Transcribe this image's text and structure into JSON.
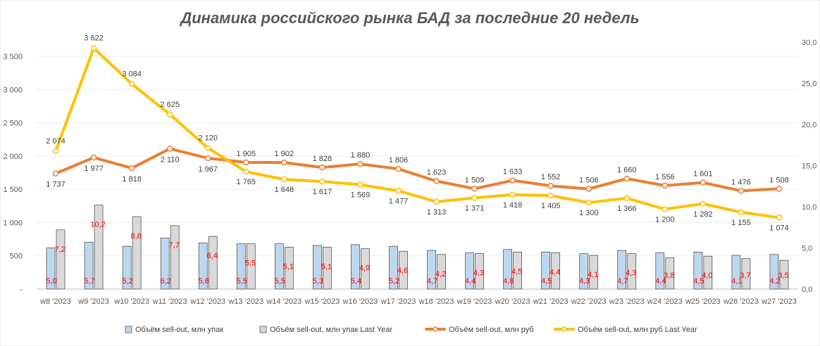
{
  "chart_data": {
    "type": "bar",
    "title": "Динамика российского рынка БАД за последние 20 недель",
    "categories": [
      "w8 '2023",
      "w9 '2023",
      "w10 '2023",
      "w11 '2023",
      "w12 '2023",
      "w13 '2023",
      "w14 '2023",
      "w15 '2023",
      "w16 '2023",
      "w17 '2023",
      "w18 '2023",
      "w19 '2023",
      "w20 '2023",
      "w21 '2023",
      "w22 '2023",
      "w23 '2023",
      "w24 '2023",
      "w25 '2023",
      "w26 '2023",
      "w27 '2023"
    ],
    "y_left": {
      "ticks": [
        "-",
        "500",
        "1 000",
        "1 500",
        "2 000",
        "2 500",
        "3 000",
        "3 500"
      ],
      "range": [
        0,
        3500
      ]
    },
    "y_right": {
      "ticks": [
        "0,0",
        "5,0",
        "10,0",
        "15,0",
        "20,0",
        "25,0",
        "30,0"
      ],
      "range": [
        0,
        30
      ]
    },
    "series": [
      {
        "name": "Объём sell-out, млн упак",
        "type": "bar",
        "axis": "right",
        "color": "#bdd7ee",
        "values": [
          5.0,
          5.7,
          5.2,
          6.2,
          5.6,
          5.5,
          5.5,
          5.3,
          5.4,
          5.2,
          4.7,
          4.4,
          4.8,
          4.5,
          4.3,
          4.7,
          4.4,
          4.5,
          4.1,
          4.2
        ],
        "labels": [
          "5,0",
          "5,7",
          "5,2",
          "6,2",
          "5,6",
          "5,5",
          "5,5",
          "5,3",
          "5,4",
          "5,2",
          "4,7",
          "4,4",
          "4,8",
          "4,5",
          "4,3",
          "4,7",
          "4,4",
          "4,5",
          "4,1",
          "4,2"
        ]
      },
      {
        "name": "Объём sell-out, млн упак Last Year",
        "type": "bar",
        "axis": "right",
        "color": "#d9d9d9",
        "values": [
          7.2,
          10.2,
          8.8,
          7.7,
          6.4,
          5.5,
          5.1,
          5.1,
          4.9,
          4.6,
          4.2,
          4.3,
          4.5,
          4.4,
          4.1,
          4.3,
          3.8,
          4.0,
          3.7,
          3.5
        ],
        "labels": [
          "7,2",
          "10,2",
          "8,8",
          "7,7",
          "6,4",
          "5,5",
          "5,1",
          "5,1",
          "4,9",
          "4,6",
          "4,2",
          "4,3",
          "4,5",
          "4,4",
          "4,1",
          "4,3",
          "3,8",
          "4,0",
          "3,7",
          "3,5"
        ]
      },
      {
        "name": "Объём sell-out, млн руб",
        "type": "line",
        "axis": "left",
        "color": "#ed7d31",
        "values": [
          1737,
          1977,
          1818,
          2110,
          1967,
          1905,
          1902,
          1828,
          1880,
          1806,
          1623,
          1509,
          1633,
          1552,
          1506,
          1660,
          1556,
          1601,
          1476,
          1508
        ],
        "labels": [
          "1 737",
          "1 977",
          "1 818",
          "2 110",
          "1 967",
          "1 905",
          "1 902",
          "1 828",
          "1 880",
          "1 806",
          "1 623",
          "1 509",
          "1 633",
          "1 552",
          "1 506",
          "1 660",
          "1 556",
          "1 601",
          "1 476",
          "1 508"
        ]
      },
      {
        "name": "Объём sell-out, млн руб Last Year",
        "type": "line",
        "axis": "left",
        "color": "#ffc000",
        "values": [
          2074,
          3622,
          3084,
          2625,
          2120,
          1765,
          1648,
          1617,
          1569,
          1477,
          1313,
          1371,
          1418,
          1405,
          1300,
          1366,
          1200,
          1282,
          1155,
          1074
        ],
        "labels": [
          "2 074",
          "3 622",
          "3 084",
          "2 625",
          "2 120",
          "1 765",
          "1 648",
          "1 617",
          "1 569",
          "1 477",
          "1 313",
          "1 371",
          "1 418",
          "1 405",
          "1 300",
          "1 366",
          "1 200",
          "1 282",
          "1 155",
          "1 074"
        ]
      }
    ],
    "legend_position": "bottom"
  }
}
